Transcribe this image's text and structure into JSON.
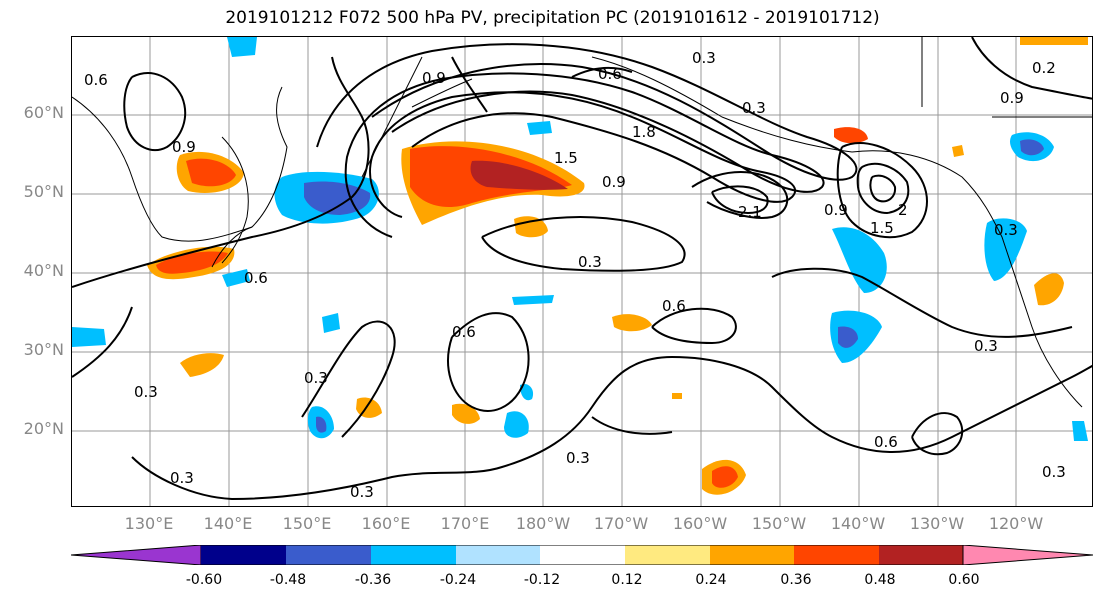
{
  "title": "2019101212 F072 500 hPa PV, precipitation PC (2019101612 - 2019101712)",
  "latitude_labels": [
    "60°N",
    "50°N",
    "40°N",
    "30°N",
    "20°N"
  ],
  "longitude_labels": [
    "130°E",
    "140°E",
    "150°E",
    "160°E",
    "170°E",
    "180°W",
    "170°W",
    "160°W",
    "150°W",
    "140°W",
    "130°W",
    "120°W"
  ],
  "contour_labels": [
    "0.6",
    "0.9",
    "0.6",
    "0.3",
    "0.9",
    "1.5",
    "1.8",
    "0.9",
    "2.1",
    "0.3",
    "0.6",
    "0.6",
    "0.3",
    "0.3",
    "0.3",
    "0.3",
    "0.3",
    "0.9",
    "1.5",
    "2",
    "0.3",
    "0.3",
    "0.6",
    "0.3",
    "0.2",
    "0.9",
    "0.6",
    "0.3"
  ],
  "colorbar": {
    "tick_labels": [
      "-0.60",
      "-0.48",
      "-0.36",
      "-0.24",
      "-0.12",
      "0.12",
      "0.24",
      "0.36",
      "0.48",
      "0.60"
    ],
    "colors": [
      "#9a35d0",
      "#00008b",
      "#3a5ccc",
      "#00bfff",
      "#b0e2ff",
      "#ffffff",
      "#ffea80",
      "#ffa500",
      "#ff4500",
      "#b22222",
      "#ff88b0"
    ]
  }
}
